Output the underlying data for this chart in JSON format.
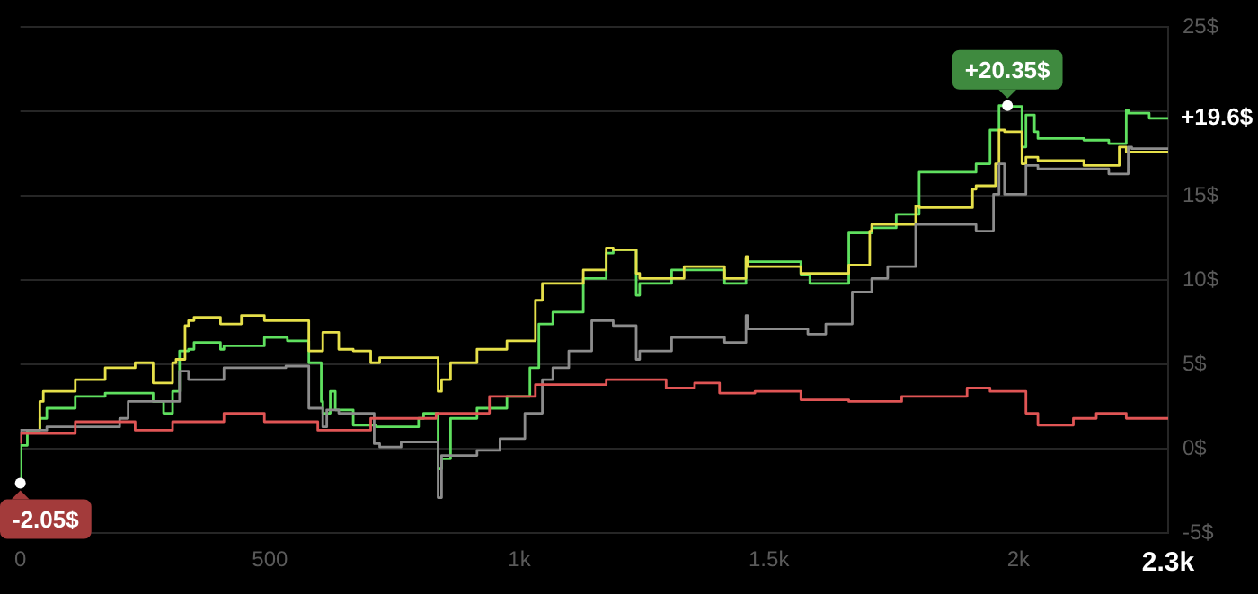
{
  "chart_data": {
    "type": "step",
    "xlim": [
      0,
      2300
    ],
    "xticks": [
      0,
      500,
      {
        "value": 1000,
        "label": "1k"
      },
      {
        "value": 1500,
        "label": "1.5k"
      },
      {
        "value": 2000,
        "label": "2k"
      },
      {
        "value": 2300,
        "label": "2.3k"
      }
    ],
    "ylim": [
      -5,
      25
    ],
    "yticks": [
      {
        "value": -5,
        "label": "-5$"
      },
      {
        "value": 0,
        "label": "0$"
      },
      {
        "value": 5,
        "label": "5$"
      },
      {
        "value": 10,
        "label": "10$"
      },
      {
        "value": 15,
        "label": "15$"
      },
      {
        "value": 20,
        "label": null
      },
      {
        "value": 25,
        "label": "25$"
      }
    ],
    "grid": "y",
    "legend": false,
    "marker": "none",
    "line_style": "solid",
    "annotations": [
      {
        "text": "+20.35$",
        "x": 1978,
        "y": 20.35
      },
      {
        "text": "-2.05$",
        "x": 0,
        "y": -2.05
      },
      {
        "text": "+19.6$",
        "x": 2300,
        "y": 19.6
      }
    ],
    "series": [
      {
        "color": "#e05555",
        "x": [
          0,
          110,
          230,
          305,
          408,
          489,
          596,
          702,
          833,
          940,
          1032,
          1174,
          1234,
          1294,
          1351,
          1401,
          1472,
          1564,
          1660,
          1766,
          1812,
          1897,
          1943,
          2015,
          2039,
          2110,
          2156,
          2216,
          2300
        ],
        "values": [
          0.3,
          0.9,
          1.6,
          1.1,
          1.6,
          2.1,
          1.6,
          1.1,
          1.8,
          2.1,
          3.1,
          3.8,
          4.1,
          4.1,
          3.6,
          3.9,
          3.3,
          3.4,
          2.9,
          2.8,
          3.1,
          3.1,
          3.6,
          3.4,
          2.1,
          1.4,
          1.8,
          2.1,
          1.8
        ]
      },
      {
        "color": "#8c8c8c",
        "x": [
          0,
          53,
          199,
          216,
          319,
          337,
          408,
          532,
          578,
          606,
          614,
          638,
          709,
          720,
          763,
          837,
          844,
          915,
          961,
          1011,
          1046,
          1067,
          1099,
          1145,
          1188,
          1234,
          1241,
          1305,
          1411,
          1454,
          1457,
          1578,
          1614,
          1667,
          1706,
          1738,
          1794,
          1915,
          1950,
          1961,
          1972,
          2015,
          2039,
          2181,
          2220,
          2227,
          2300
        ],
        "values": [
          0.3,
          1.1,
          1.3,
          1.8,
          2.8,
          4.6,
          4.1,
          4.8,
          4.9,
          2.4,
          1.3,
          2.3,
          2.1,
          0.3,
          0.1,
          0.4,
          -2.9,
          -0.4,
          -0.1,
          0.6,
          2.1,
          4.1,
          4.8,
          5.8,
          7.6,
          7.3,
          5.3,
          5.8,
          6.6,
          6.3,
          7.9,
          7.1,
          6.8,
          7.4,
          9.3,
          10.1,
          10.8,
          13.3,
          12.9,
          15.1,
          16.9,
          15.1,
          16.8,
          16.6,
          16.3,
          17.9,
          17.8
        ]
      },
      {
        "color": "#e6e04a",
        "x": [
          39,
          46,
          110,
          170,
          230,
          266,
          305,
          312,
          330,
          337,
          348,
          401,
          443,
          489,
          578,
          606,
          638,
          667,
          702,
          720,
          837,
          844,
          862,
          915,
          975,
          1032,
          1046,
          1128,
          1174,
          1188,
          1234,
          1241,
          1330,
          1411,
          1454,
          1457,
          1564,
          1660,
          1702,
          1706,
          1794,
          1801,
          1908,
          1915,
          1954,
          1961,
          1972,
          2007,
          2015,
          2039,
          2131,
          2202,
          2216,
          2300
        ],
        "values": [
          1.1,
          2.8,
          3.4,
          4.1,
          4.8,
          5.1,
          3.9,
          5.1,
          5.3,
          7.3,
          7.6,
          7.8,
          7.4,
          7.9,
          7.6,
          5.8,
          6.9,
          5.9,
          5.8,
          5.1,
          5.4,
          3.4,
          4.1,
          5.1,
          5.9,
          6.4,
          8.8,
          9.8,
          10.6,
          11.9,
          11.8,
          10.4,
          10.1,
          10.8,
          10.1,
          11.4,
          10.8,
          10.4,
          10.9,
          12.9,
          13.3,
          14.4,
          14.3,
          15.4,
          15.6,
          16.9,
          18.9,
          18.8,
          16.9,
          17.3,
          17.1,
          16.8,
          17.9,
          17.6
        ]
      },
      {
        "color": "#5fe05f",
        "x": [
          0,
          14,
          39,
          53,
          110,
          170,
          266,
          287,
          305,
          319,
          337,
          348,
          401,
          408,
          489,
          535,
          578,
          603,
          606,
          621,
          631,
          667,
          713,
          798,
          808,
          837,
          844,
          862,
          915,
          975,
          1021,
          1039,
          1067,
          1128,
          1174,
          1188,
          1234,
          1241,
          1305,
          1411,
          1454,
          1457,
          1564,
          1582,
          1660,
          1706,
          1755,
          1801,
          1915,
          1943,
          1961,
          1978,
          2007,
          2015,
          2032,
          2039,
          2131,
          2181,
          2216,
          2220,
          2262,
          2300
        ],
        "values": [
          -2.05,
          0.2,
          1.1,
          1.8,
          2.4,
          3.1,
          3.3,
          2.8,
          2.1,
          3.4,
          5.8,
          5.9,
          6.3,
          5.9,
          6.1,
          6.6,
          6.4,
          5.1,
          2.8,
          2.1,
          3.4,
          2.3,
          1.4,
          1.3,
          1.8,
          2.1,
          -1.2,
          -0.6,
          1.8,
          2.4,
          3.1,
          4.8,
          7.4,
          8.1,
          10.1,
          11.6,
          11.8,
          9.1,
          9.8,
          10.6,
          9.8,
          11.3,
          11.1,
          10.3,
          9.8,
          12.8,
          13.1,
          13.9,
          16.4,
          16.9,
          18.9,
          20.35,
          20.3,
          17.9,
          19.8,
          18.8,
          18.4,
          18.3,
          18.1,
          20.1,
          19.9,
          19.6
        ]
      }
    ]
  }
}
